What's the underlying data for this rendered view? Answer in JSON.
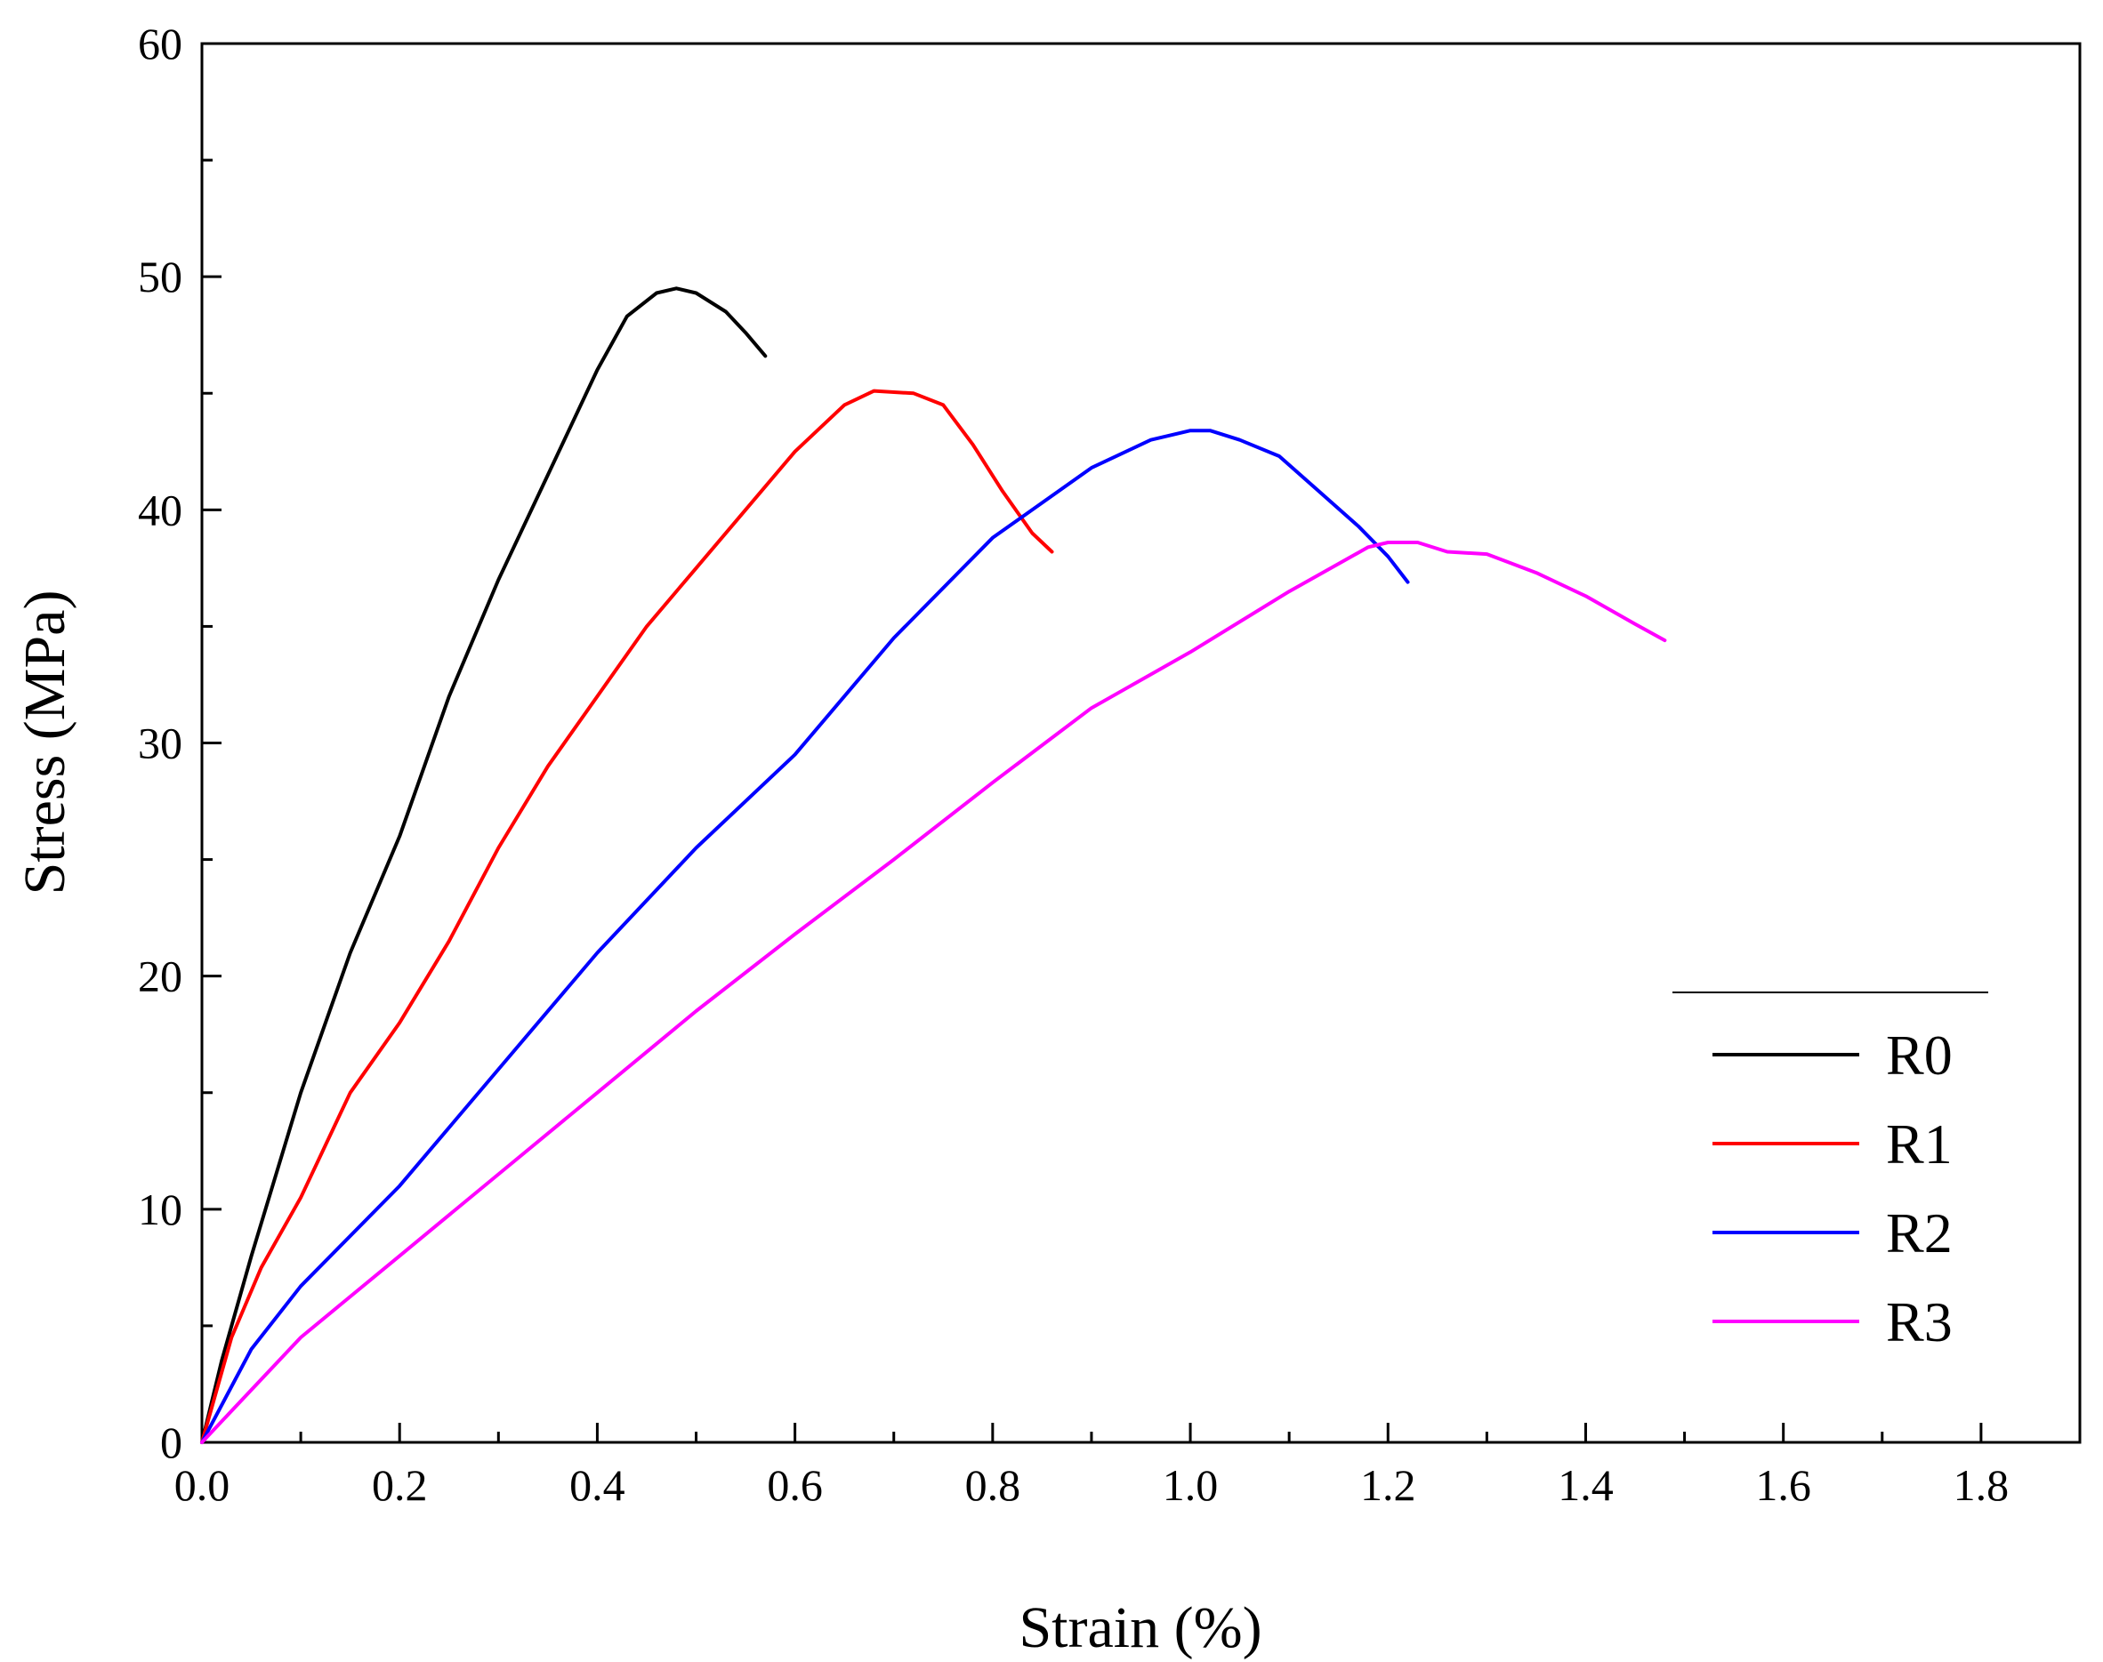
{
  "chart_data": {
    "type": "line",
    "title": "",
    "xlabel": "Strain (%)",
    "ylabel": "Stress (MPa)",
    "xlim": [
      0,
      1.9
    ],
    "ylim": [
      0,
      60
    ],
    "x_ticks": [
      0.0,
      0.2,
      0.4,
      0.6,
      0.8,
      1.0,
      1.2,
      1.4,
      1.6,
      1.8
    ],
    "x_tick_labels": [
      "0.0",
      "0.2",
      "0.4",
      "0.6",
      "0.8",
      "1.0",
      "1.2",
      "1.4",
      "1.6",
      "1.8"
    ],
    "y_ticks": [
      0,
      10,
      20,
      30,
      40,
      50,
      60
    ],
    "y_tick_labels": [
      "0",
      "10",
      "20",
      "30",
      "40",
      "50",
      "60"
    ],
    "grid": false,
    "legend_position": "bottom-right",
    "series": [
      {
        "name": "R0",
        "color": "#000000",
        "points": [
          [
            0,
            0
          ],
          [
            0.02,
            3.5
          ],
          [
            0.05,
            8
          ],
          [
            0.1,
            15
          ],
          [
            0.15,
            21
          ],
          [
            0.2,
            26
          ],
          [
            0.25,
            32
          ],
          [
            0.3,
            37
          ],
          [
            0.35,
            41.5
          ],
          [
            0.4,
            46
          ],
          [
            0.43,
            48.3
          ],
          [
            0.46,
            49.3
          ],
          [
            0.48,
            49.5
          ],
          [
            0.5,
            49.3
          ],
          [
            0.53,
            48.5
          ],
          [
            0.55,
            47.6
          ],
          [
            0.57,
            46.6
          ]
        ]
      },
      {
        "name": "R1",
        "color": "#ff0000",
        "points": [
          [
            0,
            0
          ],
          [
            0.03,
            4.5
          ],
          [
            0.06,
            7.5
          ],
          [
            0.1,
            10.5
          ],
          [
            0.15,
            15
          ],
          [
            0.2,
            18
          ],
          [
            0.25,
            21.5
          ],
          [
            0.3,
            25.5
          ],
          [
            0.35,
            29
          ],
          [
            0.4,
            32
          ],
          [
            0.45,
            35
          ],
          [
            0.5,
            37.5
          ],
          [
            0.55,
            40
          ],
          [
            0.6,
            42.5
          ],
          [
            0.65,
            44.5
          ],
          [
            0.68,
            45.1
          ],
          [
            0.72,
            45
          ],
          [
            0.75,
            44.5
          ],
          [
            0.78,
            42.8
          ],
          [
            0.81,
            40.8
          ],
          [
            0.84,
            39
          ],
          [
            0.86,
            38.2
          ]
        ]
      },
      {
        "name": "R2",
        "color": "#0000ff",
        "points": [
          [
            0,
            0
          ],
          [
            0.05,
            4
          ],
          [
            0.1,
            6.7
          ],
          [
            0.2,
            11
          ],
          [
            0.3,
            16
          ],
          [
            0.4,
            21
          ],
          [
            0.5,
            25.5
          ],
          [
            0.6,
            29.5
          ],
          [
            0.7,
            34.5
          ],
          [
            0.8,
            38.8
          ],
          [
            0.9,
            41.8
          ],
          [
            0.96,
            43
          ],
          [
            1.0,
            43.4
          ],
          [
            1.02,
            43.4
          ],
          [
            1.05,
            43
          ],
          [
            1.09,
            42.3
          ],
          [
            1.13,
            40.8
          ],
          [
            1.17,
            39.3
          ],
          [
            1.2,
            38
          ],
          [
            1.22,
            36.9
          ]
        ]
      },
      {
        "name": "R3",
        "color": "#ff00ff",
        "points": [
          [
            0,
            0
          ],
          [
            0.1,
            4.5
          ],
          [
            0.2,
            8
          ],
          [
            0.3,
            11.5
          ],
          [
            0.4,
            15
          ],
          [
            0.5,
            18.5
          ],
          [
            0.6,
            21.8
          ],
          [
            0.7,
            25
          ],
          [
            0.8,
            28.3
          ],
          [
            0.9,
            31.5
          ],
          [
            1.0,
            33.9
          ],
          [
            1.1,
            36.5
          ],
          [
            1.18,
            38.4
          ],
          [
            1.2,
            38.6
          ],
          [
            1.23,
            38.6
          ],
          [
            1.26,
            38.2
          ],
          [
            1.3,
            38.1
          ],
          [
            1.35,
            37.3
          ],
          [
            1.4,
            36.3
          ],
          [
            1.45,
            35.1
          ],
          [
            1.48,
            34.4
          ]
        ]
      }
    ]
  }
}
